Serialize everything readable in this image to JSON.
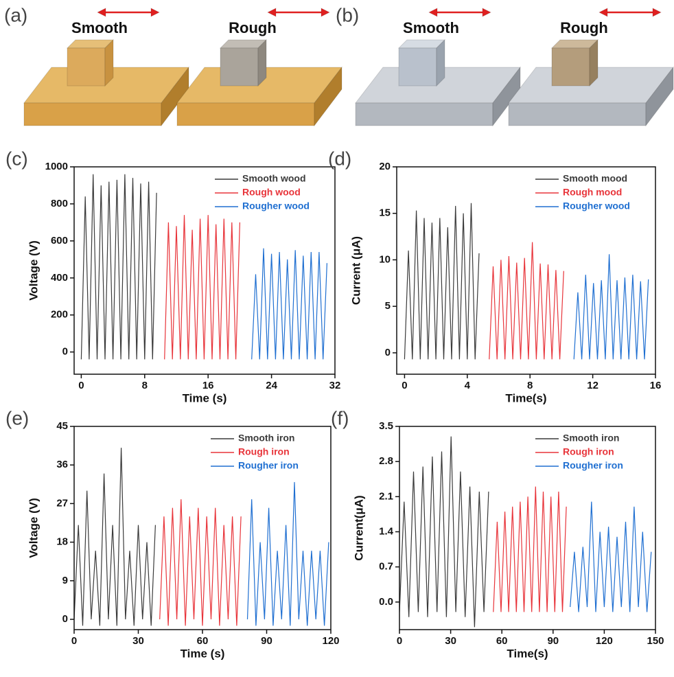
{
  "illustrations": [
    {
      "label": "(a)",
      "items": [
        "Smooth",
        "Rough"
      ]
    },
    {
      "label": "(b)",
      "items": [
        "Smooth",
        "Rough"
      ]
    }
  ],
  "chart_data": [
    {
      "type": "line",
      "panel": "(c)",
      "xlabel": "Time (s)",
      "ylabel": "Voltage (V)",
      "xlim": [
        -0.9,
        32
      ],
      "ylim": [
        -120,
        1000
      ],
      "xticks": [
        0,
        8,
        16,
        24,
        32
      ],
      "yticks": [
        0,
        200,
        400,
        600,
        800,
        1000
      ],
      "series": [
        {
          "name": "Smooth wood",
          "color": "#3a3a3a",
          "x": [
            0,
            0.5,
            1,
            1.5,
            2,
            2.5,
            3,
            3.5,
            4,
            4.5,
            5,
            5.5,
            6,
            6.5,
            7,
            7.5,
            8,
            8.5,
            9,
            9.5
          ],
          "values": [
            -40,
            840,
            -40,
            960,
            -40,
            900,
            -40,
            920,
            -40,
            930,
            -40,
            960,
            -40,
            940,
            -40,
            910,
            -40,
            920,
            -40,
            860
          ]
        },
        {
          "name": "Rough wood",
          "color": "#e8343a",
          "x": [
            10.5,
            11,
            11.5,
            12,
            12.5,
            13,
            13.5,
            14,
            14.5,
            15,
            15.5,
            16,
            16.5,
            17,
            17.5,
            18,
            18.5,
            19,
            19.5,
            20
          ],
          "values": [
            -40,
            700,
            -40,
            680,
            -40,
            740,
            -40,
            660,
            -40,
            720,
            -40,
            740,
            -40,
            690,
            -40,
            720,
            -40,
            700,
            -40,
            700
          ]
        },
        {
          "name": "Rougher wood",
          "color": "#1f6fd1",
          "x": [
            21.5,
            22,
            22.5,
            23,
            23.5,
            24,
            24.5,
            25,
            25.5,
            26,
            26.5,
            27,
            27.5,
            28,
            28.5,
            29,
            29.5,
            30,
            30.5,
            31
          ],
          "values": [
            -40,
            420,
            -40,
            560,
            -40,
            530,
            -40,
            540,
            -40,
            500,
            -40,
            550,
            -40,
            520,
            -40,
            540,
            -40,
            540,
            -40,
            480
          ]
        }
      ]
    },
    {
      "type": "line",
      "panel": "(d)",
      "xlabel": "Time(s)",
      "ylabel": "Current (μA)",
      "xlim": [
        -0.5,
        16
      ],
      "ylim": [
        -2.3,
        20
      ],
      "xticks": [
        0,
        4,
        8,
        12,
        16
      ],
      "yticks": [
        0,
        5,
        10,
        15,
        20
      ],
      "series": [
        {
          "name": "Smooth mood",
          "color": "#3a3a3a",
          "x": [
            0,
            0.25,
            0.5,
            0.75,
            1,
            1.25,
            1.5,
            1.75,
            2,
            2.25,
            2.5,
            2.75,
            3,
            3.25,
            3.5,
            3.75,
            4,
            4.25,
            4.5,
            4.75
          ],
          "values": [
            -0.7,
            11,
            -0.7,
            15.3,
            -0.7,
            14.5,
            -0.7,
            14,
            -0.7,
            14.5,
            -0.7,
            13.5,
            -0.7,
            15.8,
            -0.7,
            15,
            -0.7,
            16.1,
            -0.7,
            10.7
          ]
        },
        {
          "name": "Rough mood",
          "color": "#e8343a",
          "x": [
            5.4,
            5.65,
            5.9,
            6.15,
            6.4,
            6.65,
            6.9,
            7.15,
            7.4,
            7.65,
            7.9,
            8.15,
            8.4,
            8.65,
            8.9,
            9.15,
            9.4,
            9.65,
            9.9,
            10.15
          ],
          "values": [
            -0.7,
            9.3,
            -0.7,
            10,
            -0.7,
            10.4,
            -0.7,
            9.7,
            -0.7,
            10.2,
            -0.7,
            11.9,
            -0.7,
            9.6,
            -0.7,
            9.5,
            -0.7,
            8.9,
            -0.7,
            8.8
          ]
        },
        {
          "name": "Rougher wood",
          "color": "#1f6fd1",
          "x": [
            10.8,
            11.05,
            11.3,
            11.55,
            11.8,
            12.05,
            12.3,
            12.55,
            12.8,
            13.05,
            13.3,
            13.55,
            13.8,
            14.05,
            14.3,
            14.55,
            14.8,
            15.05,
            15.3,
            15.55
          ],
          "values": [
            -0.7,
            6.5,
            -0.7,
            8.4,
            -0.7,
            7.5,
            -0.7,
            7.8,
            -0.7,
            10.6,
            -0.7,
            7.8,
            -0.7,
            8.1,
            -0.7,
            8.4,
            -0.7,
            7.7,
            -0.7,
            7.9
          ]
        }
      ]
    },
    {
      "type": "line",
      "panel": "(e)",
      "xlabel": "Time (s)",
      "ylabel": "Voltage (V)",
      "xlim": [
        0,
        120
      ],
      "ylim": [
        -2.4,
        45
      ],
      "xticks": [
        0,
        30,
        60,
        90,
        120
      ],
      "yticks": [
        0,
        9,
        18,
        27,
        36,
        45
      ],
      "series": [
        {
          "name": "Smooth iron",
          "color": "#3a3a3a",
          "x": [
            0,
            2,
            4,
            6,
            8,
            10,
            12,
            14,
            16,
            18,
            20,
            22,
            24,
            26,
            28,
            30,
            32,
            34,
            36,
            38
          ],
          "values": [
            0,
            22,
            -1.5,
            30,
            0,
            16,
            -1.5,
            34,
            0,
            22,
            -1.5,
            40,
            0,
            16,
            -1.5,
            22,
            0,
            18,
            -1.5,
            22
          ]
        },
        {
          "name": "Rough iron",
          "color": "#e8343a",
          "x": [
            40,
            42,
            44,
            46,
            48,
            50,
            52,
            54,
            56,
            58,
            60,
            62,
            64,
            66,
            68,
            70,
            72,
            74,
            76,
            78
          ],
          "values": [
            0,
            24,
            -1.5,
            26,
            0,
            28,
            -1.5,
            24,
            0,
            26,
            -1.5,
            24,
            0,
            26,
            -1.5,
            22,
            0,
            24,
            -1.5,
            24
          ]
        },
        {
          "name": "Rougher iron",
          "color": "#1f6fd1",
          "x": [
            81,
            83,
            85,
            87,
            89,
            91,
            93,
            95,
            97,
            99,
            101,
            103,
            105,
            107,
            109,
            111,
            113,
            115,
            117,
            119
          ],
          "values": [
            0,
            28,
            -1.5,
            18,
            0,
            26,
            -1.5,
            16,
            0,
            22,
            -1.5,
            32,
            0,
            16,
            -1.5,
            16,
            0,
            16,
            -1.5,
            18
          ]
        }
      ]
    },
    {
      "type": "line",
      "panel": "(f)",
      "xlabel": "Time(s)",
      "ylabel": "Current(μA)",
      "xlim": [
        0,
        150
      ],
      "ylim": [
        -0.55,
        3.5
      ],
      "xticks": [
        0,
        30,
        60,
        90,
        120,
        150
      ],
      "yticks": [
        {
          "value": 0,
          "label": "0.0"
        },
        0.7,
        1.4,
        2.1,
        2.8,
        3.5
      ],
      "series": [
        {
          "name": "Smooth iron",
          "color": "#3a3a3a",
          "x": [
            0,
            2.75,
            5.5,
            8.25,
            11,
            13.75,
            16.5,
            19.25,
            22,
            24.75,
            27.5,
            30.25,
            33,
            35.75,
            38.5,
            41.25,
            44,
            46.75,
            49.5,
            52.25
          ],
          "values": [
            -0.2,
            2.0,
            -0.3,
            2.6,
            -0.2,
            2.7,
            -0.3,
            2.9,
            -0.2,
            3.0,
            -0.3,
            3.3,
            -0.2,
            2.6,
            -0.3,
            2.3,
            -0.5,
            2.2,
            -0.2,
            2.2
          ]
        },
        {
          "name": "Rough iron",
          "color": "#e8343a",
          "x": [
            55,
            57.25,
            59.5,
            61.75,
            64,
            66.25,
            68.5,
            70.75,
            73,
            75.25,
            77.5,
            79.75,
            82,
            84.25,
            86.5,
            88.75,
            91,
            93.25,
            95.5,
            97.75
          ],
          "values": [
            -0.2,
            1.6,
            -0.2,
            1.8,
            -0.2,
            1.9,
            -0.2,
            2.0,
            -0.2,
            2.1,
            -0.2,
            2.3,
            -0.2,
            2.2,
            -0.2,
            2.1,
            -0.2,
            2.2,
            -0.2,
            1.9
          ]
        },
        {
          "name": "Rougher iron",
          "color": "#1f6fd1",
          "x": [
            100,
            102.5,
            105,
            107.5,
            110,
            112.5,
            115,
            117.5,
            120,
            122.5,
            125,
            127.5,
            130,
            132.5,
            135,
            137.5,
            140,
            142.5,
            145,
            147.5
          ],
          "values": [
            -0.1,
            1.0,
            -0.2,
            1.1,
            -0.1,
            2.0,
            -0.2,
            1.4,
            -0.1,
            1.5,
            -0.2,
            1.3,
            -0.1,
            1.6,
            -0.2,
            1.9,
            -0.1,
            1.4,
            -0.2,
            1.0
          ]
        }
      ]
    }
  ]
}
